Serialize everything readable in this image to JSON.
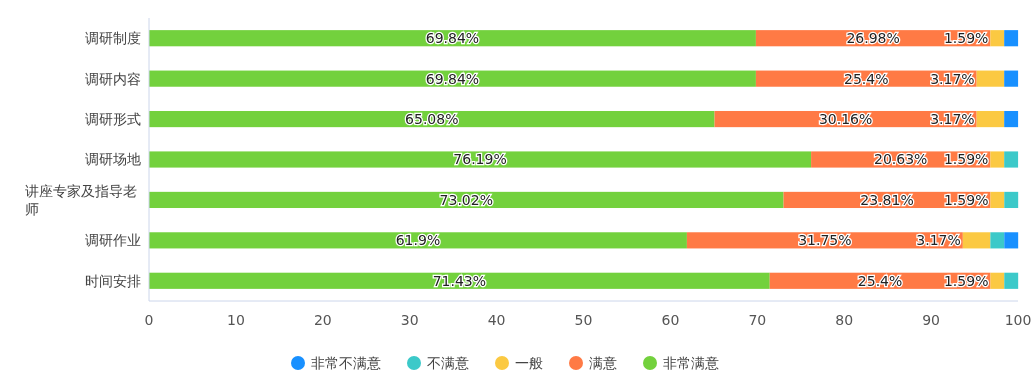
{
  "chart_data": {
    "type": "bar",
    "orientation": "horizontal",
    "stacked": true,
    "legend": "bottom",
    "grid": false,
    "categories": [
      "调研制度",
      "调研内容",
      "调研形式",
      "调研场地",
      "讲座专家及指导老师",
      "调研作业",
      "时间安排"
    ],
    "xlim": [
      0,
      100
    ],
    "xticks": [
      0,
      10,
      20,
      30,
      40,
      50,
      60,
      70,
      80,
      90,
      100
    ],
    "series": [
      {
        "name": "非常满意",
        "color": "#73d13d",
        "values": [
          69.84,
          69.84,
          65.08,
          76.19,
          73.02,
          61.9,
          71.43
        ],
        "value_labels": [
          "69.84%",
          "69.84%",
          "65.08%",
          "76.19%",
          "73.02%",
          "61.9%",
          "71.43%"
        ]
      },
      {
        "name": "满意",
        "color": "#ff7a45",
        "values": [
          26.98,
          25.4,
          30.16,
          20.63,
          23.81,
          31.75,
          25.4
        ],
        "value_labels": [
          "26.98%",
          "25.4%",
          "30.16%",
          "20.63%",
          "23.81%",
          "31.75%",
          "25.4%"
        ]
      },
      {
        "name": "一般",
        "color": "#fbc942",
        "values": [
          1.59,
          3.17,
          3.17,
          1.59,
          1.59,
          3.17,
          1.59
        ],
        "value_labels": [
          "1.59%",
          "3.17%",
          "3.17%",
          "1.59%",
          "1.59%",
          "3.17%",
          "1.59%"
        ]
      },
      {
        "name": "不满意",
        "color": "#3cc9c9",
        "values": [
          null,
          null,
          null,
          1.6,
          1.6,
          1.6,
          1.6
        ]
      },
      {
        "name": "非常不满意",
        "color": "#1890ff",
        "values": [
          1.6,
          1.6,
          1.6,
          null,
          null,
          1.6,
          null
        ]
      }
    ]
  }
}
